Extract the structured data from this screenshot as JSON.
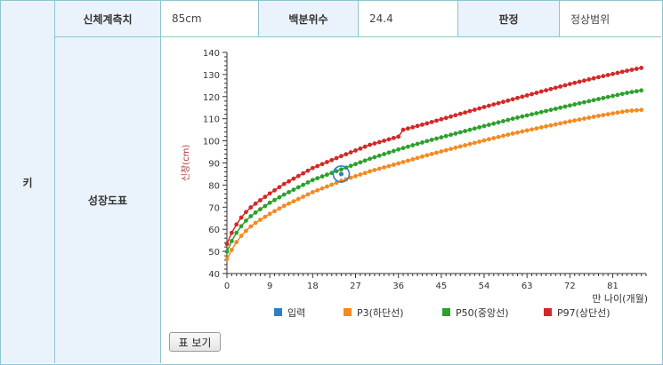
{
  "row_label": "키",
  "summary": {
    "measure_label": "신체계측치",
    "measure_value": "85cm",
    "percentile_label": "백분위수",
    "percentile_value": "24.4",
    "judgement_label": "판정",
    "judgement_value": "정상범위"
  },
  "growth_chart_label": "성장도표",
  "show_table_label": "표 보기",
  "chart_data": {
    "type": "line",
    "xlabel": "만 나이(개월)",
    "ylabel": "신장(cm)",
    "xlim": [
      0,
      88
    ],
    "ylim": [
      40,
      140
    ],
    "x_ticks": [
      0,
      9,
      18,
      27,
      36,
      45,
      54,
      63,
      72,
      81
    ],
    "y_ticks": [
      40,
      50,
      60,
      70,
      80,
      90,
      100,
      110,
      120,
      130,
      140
    ],
    "legend_position": "bottom",
    "input_point": {
      "name": "입력",
      "x": 24,
      "y": 85,
      "color": "#2e7fc2"
    },
    "series": [
      {
        "name": "P3(하단선)",
        "color": "#f58a1f",
        "x": [
          0,
          1,
          2,
          3,
          4,
          5,
          6,
          9,
          12,
          18,
          24,
          30,
          36,
          42,
          48,
          54,
          60,
          66,
          72,
          78,
          84,
          87
        ],
        "values": [
          46.5,
          50.7,
          54.2,
          57.0,
          59.3,
          61.3,
          62.9,
          67.0,
          70.6,
          76.8,
          81.9,
          86.2,
          89.8,
          93.5,
          96.9,
          100.2,
          103.3,
          106.1,
          108.8,
          111.3,
          113.5,
          114.0
        ]
      },
      {
        "name": "P50(중앙선)",
        "color": "#2ca02c",
        "x": [
          0,
          1,
          2,
          3,
          4,
          5,
          6,
          9,
          12,
          18,
          24,
          30,
          36,
          42,
          48,
          54,
          60,
          66,
          72,
          78,
          84,
          87
        ],
        "values": [
          49.9,
          54.7,
          58.4,
          61.4,
          63.9,
          65.9,
          67.6,
          72.0,
          75.7,
          82.3,
          87.1,
          91.9,
          96.1,
          99.9,
          103.3,
          106.7,
          110.0,
          113.0,
          116.0,
          118.9,
          121.7,
          122.8
        ]
      },
      {
        "name": "P97(상단선)",
        "color": "#d62728",
        "x": [
          0,
          1,
          2,
          3,
          4,
          5,
          6,
          9,
          12,
          18,
          24,
          30,
          36,
          37,
          42,
          48,
          54,
          60,
          66,
          72,
          78,
          84,
          87
        ],
        "values": [
          53.4,
          58.4,
          62.2,
          65.3,
          67.8,
          69.9,
          71.6,
          76.2,
          80.5,
          87.7,
          93.1,
          98.2,
          101.9,
          105.0,
          107.9,
          111.6,
          115.3,
          118.8,
          122.3,
          125.7,
          128.8,
          131.7,
          133.0
        ]
      }
    ]
  }
}
